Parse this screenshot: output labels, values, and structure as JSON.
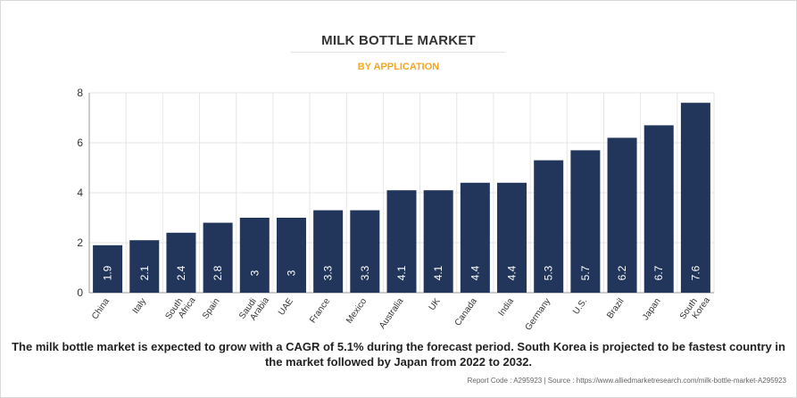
{
  "header": {
    "title": "MILK BOTTLE MARKET",
    "subtitle": "BY APPLICATION"
  },
  "caption": "The milk bottle market is expected to grow with a CAGR of 5.1% during the forecast period. South Korea is projected to be fastest country in the market followed by Japan from 2022 to 2032.",
  "footer": {
    "report_code": "Report Code : A295923",
    "separator": "|",
    "source": "Source : https://www.alliedmarketresearch.com/milk-bottle-market-A295923"
  },
  "colors": {
    "bar": "#22355a",
    "grid": "#e6e6e6",
    "subtitle": "#f5a623"
  },
  "chart_data": {
    "type": "bar",
    "categories": [
      "China",
      "Italy",
      "South Africa",
      "Spain",
      "Saudi Arabia",
      "UAE",
      "France",
      "Mexico",
      "Australia",
      "UK",
      "Canada",
      "India",
      "Germany",
      "U.S.",
      "Brazil",
      "Japan",
      "South Korea"
    ],
    "values": [
      1.9,
      2.1,
      2.4,
      2.8,
      3,
      3,
      3.3,
      3.3,
      4.1,
      4.1,
      4.4,
      4.4,
      5.3,
      5.7,
      6.2,
      6.7,
      7.6
    ],
    "data_labels": [
      "1.9",
      "2.1",
      "2.4",
      "2.8",
      "3",
      "3",
      "3.3",
      "3.3",
      "4.1",
      "4.1",
      "4.4",
      "4.4",
      "5.3",
      "5.7",
      "6.2",
      "6.7",
      "7.6"
    ],
    "yticks": [
      0,
      2,
      4,
      6,
      8
    ],
    "ylim": [
      0,
      8
    ],
    "grid": true,
    "legend": false
  }
}
